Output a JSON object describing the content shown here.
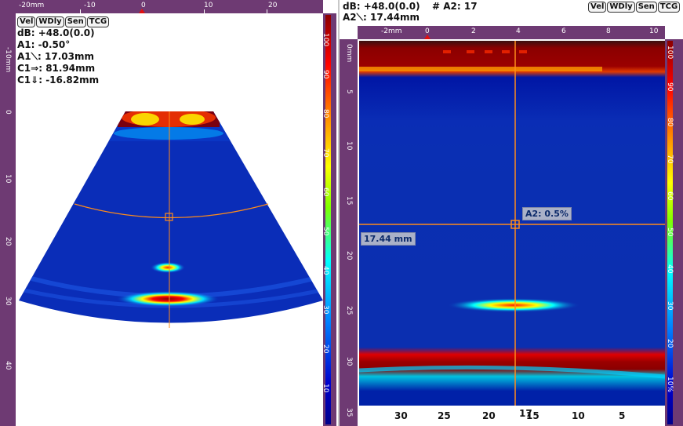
{
  "left": {
    "buttons": [
      "Vel",
      "WDly",
      "Sen",
      "TCG"
    ],
    "readouts": {
      "db": "dB: +48.0(0.0)",
      "a1": "A1: -0.50°",
      "a1_path": "A1⟍: 17.03mm",
      "c1_h": "C1⇒: 81.94mm",
      "c1_v": "C1⇓: -16.82mm"
    },
    "top_ruler": {
      "unit_label": "-20mm",
      "labels": [
        "-10",
        "0",
        "10",
        "20"
      ]
    },
    "left_ruler": {
      "unit_label": "-10mm",
      "labels": [
        "0",
        "10",
        "20",
        "30",
        "40"
      ]
    },
    "palette_labels": [
      "100",
      "90",
      "80",
      "70",
      "60",
      "50",
      "40",
      "30",
      "20",
      "10"
    ]
  },
  "right": {
    "readouts": {
      "db": "dB: +48.0(0.0)",
      "a2_hash": "# A2: 17",
      "a2_path": "A2⟍: 17.44mm"
    },
    "buttons": [
      "Vel",
      "WDly",
      "Sen",
      "TCG"
    ],
    "top_ruler": {
      "unit_label": "-2mm",
      "labels": [
        "0",
        "2",
        "4",
        "6",
        "8",
        "10"
      ]
    },
    "left_ruler": {
      "unit_label": "0mm",
      "labels": [
        "5",
        "10",
        "15",
        "20",
        "25",
        "30",
        "35"
      ]
    },
    "right_palette_labels": [
      "100",
      "90",
      "80",
      "70",
      "60",
      "50",
      "40",
      "30",
      "20",
      "10%"
    ],
    "depth_label": "17.44 mm",
    "gate_label": "A2: 0.5%",
    "bottom_axis": [
      "30",
      "25",
      "20",
      "15",
      "10",
      "5"
    ],
    "cursor_index": "17"
  },
  "colors": {
    "ruler": "#6e3a73",
    "cursor": "#ff8c1a",
    "label_bg": "#aab1c8"
  }
}
